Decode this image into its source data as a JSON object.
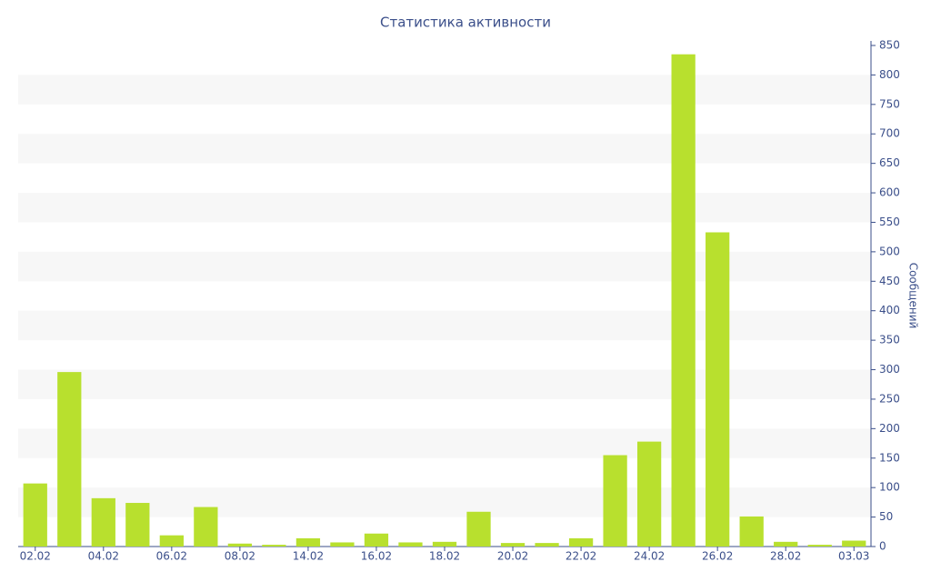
{
  "chart_data": {
    "type": "bar",
    "title": "Статистика активности",
    "y_label": "Сообщений",
    "categories": [
      "02.02",
      null,
      "04.02",
      null,
      "06.02",
      null,
      "08.02",
      null,
      "14.02",
      null,
      "16.02",
      null,
      "18.02",
      null,
      "20.02",
      null,
      "22.02",
      null,
      "24.02",
      null,
      "26.02",
      null,
      "28.02",
      null,
      "03.03"
    ],
    "values": [
      107,
      296,
      82,
      74,
      19,
      67,
      5,
      3,
      14,
      7,
      22,
      7,
      8,
      59,
      6,
      6,
      14,
      155,
      178,
      835,
      533,
      51,
      8,
      3,
      10
    ],
    "color": "#b8e02e",
    "ylim": [
      0,
      850
    ],
    "yticks": [
      0,
      50,
      100,
      150,
      200,
      250,
      300,
      350,
      400,
      450,
      500,
      550,
      600,
      650,
      700,
      750,
      800,
      850
    ],
    "grid": "bands",
    "y_axis_side": "right"
  }
}
